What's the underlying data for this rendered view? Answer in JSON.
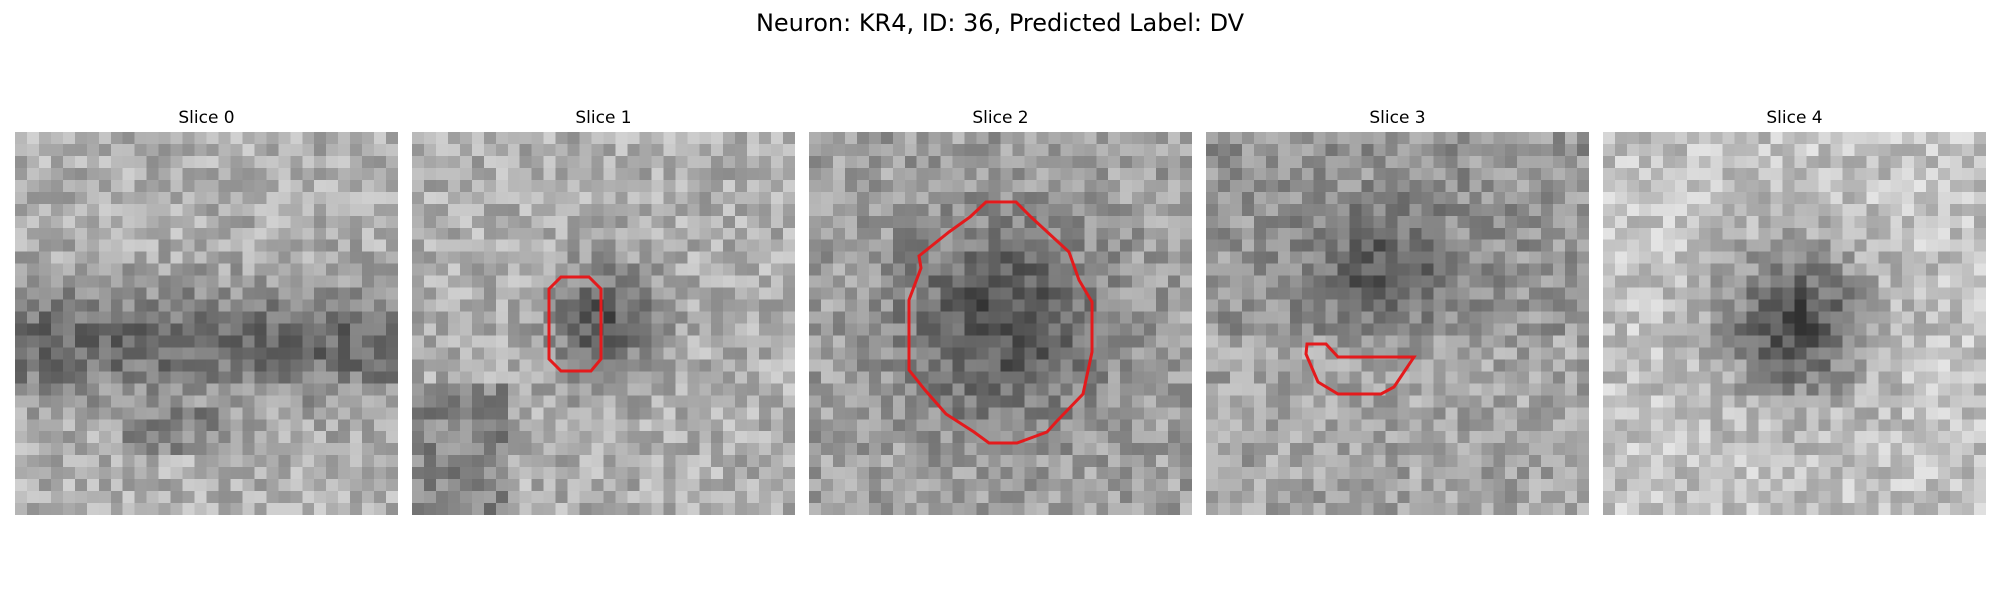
{
  "figure": {
    "title": "Neuron: KR4, ID: 36, Predicted Label: DV"
  },
  "slices": [
    {
      "label": "Slice 0",
      "has_contour": false
    },
    {
      "label": "Slice 1",
      "has_contour": true
    },
    {
      "label": "Slice 2",
      "has_contour": true
    },
    {
      "label": "Slice 3",
      "has_contour": true
    },
    {
      "label": "Slice 4",
      "has_contour": false
    }
  ],
  "colors": {
    "contour": "#e41a1c",
    "background": "#ffffff"
  }
}
